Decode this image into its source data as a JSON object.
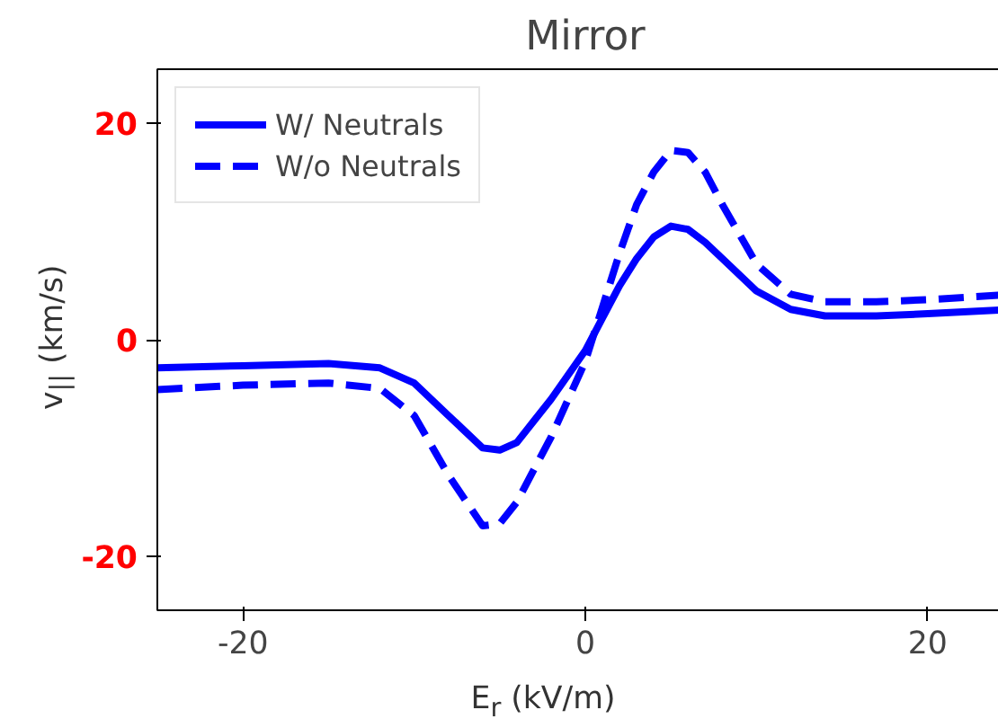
{
  "chart_data": {
    "type": "line",
    "title": "Mirror",
    "xlabel": "E$_{r}$ (kV/m)",
    "ylabel": "v$_{||}$ (km/s)",
    "xlim": [
      -25,
      25
    ],
    "ylim": [
      -25,
      25
    ],
    "xticks": [
      -20,
      0,
      20
    ],
    "yticks": [
      -20,
      0,
      20
    ],
    "grid": false,
    "legend": "top left",
    "series": [
      {
        "name": "W/ Neutrals",
        "color": "#0000ff",
        "line_style": "solid",
        "x": [
          -25,
          -20,
          -15,
          -12,
          -10,
          -8,
          -6,
          -5,
          -4,
          -3,
          -2,
          0,
          1,
          2,
          3,
          4,
          5,
          6,
          7,
          8,
          10,
          12,
          14,
          17,
          20,
          25
        ],
        "values": [
          -2.6,
          -2.4,
          -2.2,
          -2.6,
          -4,
          -7,
          -10,
          -10.2,
          -9.5,
          -7.5,
          -5.5,
          -1,
          2,
          5,
          7.5,
          9.5,
          10.5,
          10.2,
          9,
          7.5,
          4.5,
          2.8,
          2.2,
          2.2,
          2.4,
          2.8
        ]
      },
      {
        "name": "W/o Neutrals",
        "color": "#0000ff",
        "line_style": "dashed",
        "x": [
          -25,
          -20,
          -15,
          -12,
          -10,
          -8,
          -6,
          -5,
          -4,
          -3,
          -2,
          0,
          1,
          2,
          3,
          4,
          5,
          6,
          7,
          8,
          10,
          12,
          14,
          17,
          20,
          25
        ],
        "values": [
          -4.6,
          -4.2,
          -4,
          -4.5,
          -7,
          -12.5,
          -17.2,
          -17,
          -15,
          -12,
          -9,
          -2,
          3,
          8,
          12.5,
          15.5,
          17.5,
          17.3,
          15.5,
          12.5,
          7,
          4.2,
          3.5,
          3.5,
          3.7,
          4.2
        ]
      }
    ]
  }
}
